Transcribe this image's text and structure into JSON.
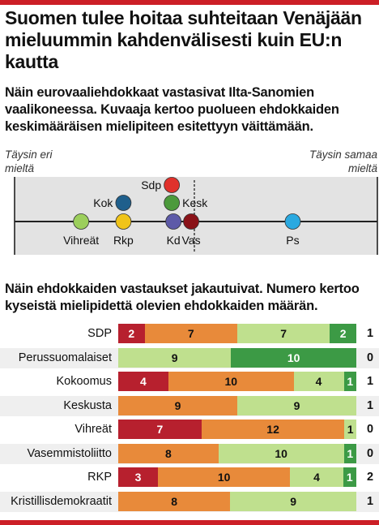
{
  "header": {
    "title": "Suomen tulee hoitaa suhteitaan Venäjään mieluummin kahdenvälisesti kuin EU:n kautta",
    "subtitle": "Näin eurovaaliehdokkaat vastasivat Ilta-Sanomien vaalikoneessa. Kuvaaja kertoo puolueen ehdokkaiden keskimääräisen mielipiteen esitettyyn väittämään."
  },
  "scale": {
    "left_label": "Täysin eri mieltä",
    "right_label": "Täysin samaa mieltä",
    "parties": [
      {
        "name": "Vihreät",
        "color": "#9ccf5c"
      },
      {
        "name": "Kok",
        "color": "#1f5f8c"
      },
      {
        "name": "Rkp",
        "color": "#f0c419"
      },
      {
        "name": "Sdp",
        "color": "#e0312c"
      },
      {
        "name": "Kesk",
        "color": "#4c9a3c"
      },
      {
        "name": "Kd",
        "color": "#5d5aa8"
      },
      {
        "name": "Vas",
        "color": "#8a1218"
      },
      {
        "name": "Ps",
        "color": "#2aa9e0"
      }
    ]
  },
  "section2": {
    "title": "Näin ehdokkaiden vastaukset jakautuivat. Numero kertoo kyseistä mielipidettä olevien ehdokkaiden määrän."
  },
  "colors": {
    "accent": "#cc1f26",
    "täysin_eri_mieltä": "#b7202e",
    "jokseenkin_eri_mieltä": "#e88a3a",
    "jokseenkin_samaa_mieltä": "#bfe08e",
    "täysin_samaa_mieltä": "#3c9a45"
  },
  "chart_data": [
    {
      "type": "scatter",
      "description_axis": "Täysin eri mieltä → Täysin samaa mieltä",
      "xlim": [
        1,
        4
      ],
      "points": [
        {
          "party": "Vihreät",
          "x": 1.55
        },
        {
          "party": "Kok",
          "x": 1.9
        },
        {
          "party": "Rkp",
          "x": 1.9
        },
        {
          "party": "Sdp",
          "x": 2.3
        },
        {
          "party": "Kesk",
          "x": 2.3
        },
        {
          "party": "Kd",
          "x": 2.28
        },
        {
          "party": "Vas",
          "x": 2.42
        },
        {
          "party": "Ps",
          "x": 3.3
        }
      ]
    },
    {
      "type": "bar",
      "stacked": true,
      "categories": [
        "SDP",
        "Perussuomalaiset",
        "Kokoomus",
        "Keskusta",
        "Vihreät",
        "Vasemmistoliitto",
        "RKP",
        "Kristillisdemokraatit"
      ],
      "series": [
        {
          "values": [
            2,
            0,
            4,
            0,
            7,
            0,
            3,
            0
          ]
        },
        {
          "values": [
            7,
            0,
            10,
            9,
            12,
            8,
            10,
            8
          ]
        },
        {
          "values": [
            7,
            9,
            4,
            9,
            1,
            10,
            4,
            9
          ]
        },
        {
          "values": [
            2,
            10,
            1,
            0,
            0,
            1,
            1,
            0
          ]
        }
      ],
      "side_values": [
        1,
        0,
        1,
        1,
        0,
        0,
        2,
        1
      ]
    }
  ]
}
